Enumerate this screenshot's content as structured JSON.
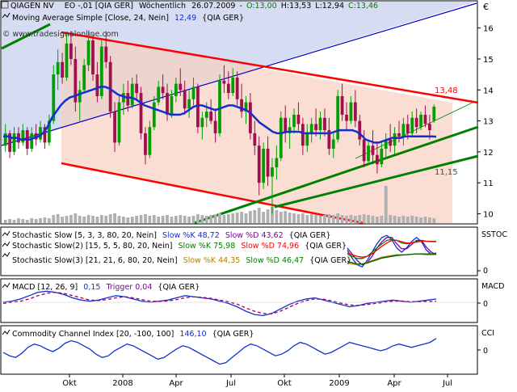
{
  "header": {
    "instrument": "QIAGEN NV",
    "exchange_code": "EO -,01 [QIA GER]",
    "period": "Wöchentlich",
    "date": "26.07.2009",
    "open": "O:13,00",
    "high": "H:13,53",
    "low": "L:12,94",
    "close": "C:13,46",
    "moving_average": "Moving Average Simple [Close, 24, Nein]",
    "moving_average_value": "12,49",
    "moving_average_symbol": "{QIA GER}",
    "watermark": "© www.tradesignalonline.com"
  },
  "colors": {
    "up_candle": "#00a000",
    "down_candle": "#a0104c",
    "ma_line": "#1030d0",
    "channel_red": "#ff0000",
    "trend_green": "#008000",
    "trend_blue": "#0000cc",
    "volume": "#b0b0b0",
    "purple_text": "#8000a0",
    "header_green": "#008000"
  },
  "chart_data": [
    {
      "type": "candlestick",
      "title": "QIAGEN NV",
      "currency": "€",
      "ylim": [
        9.7,
        16.8
      ],
      "yticks": [
        "16",
        "15",
        "14",
        "13",
        "12",
        "11",
        "10"
      ],
      "xlabels": [
        "Okt",
        "2008",
        "Apr",
        "Jul",
        "Okt",
        "2009",
        "Apr",
        "Jul"
      ],
      "annotations": [
        "13,48",
        "11,15"
      ],
      "candles": [
        [
          12.2,
          12.9,
          12.0,
          12.6
        ],
        [
          12.6,
          12.7,
          11.8,
          12.0
        ],
        [
          12.0,
          12.8,
          11.9,
          12.6
        ],
        [
          12.6,
          12.8,
          12.1,
          12.3
        ],
        [
          12.3,
          12.9,
          12.2,
          12.7
        ],
        [
          12.7,
          12.8,
          11.9,
          12.1
        ],
        [
          12.1,
          12.8,
          12.0,
          12.6
        ],
        [
          12.6,
          12.9,
          12.2,
          12.4
        ],
        [
          12.4,
          13.0,
          12.3,
          12.8
        ],
        [
          12.8,
          12.9,
          12.1,
          12.3
        ],
        [
          12.3,
          13.2,
          12.2,
          13.0
        ],
        [
          13.0,
          14.8,
          12.9,
          14.5
        ],
        [
          14.5,
          15.3,
          14.0,
          14.9
        ],
        [
          14.9,
          15.2,
          14.2,
          14.4
        ],
        [
          14.4,
          15.8,
          14.3,
          15.5
        ],
        [
          15.5,
          15.9,
          14.8,
          15.0
        ],
        [
          15.0,
          15.4,
          13.3,
          13.6
        ],
        [
          13.6,
          14.3,
          13.0,
          14.0
        ],
        [
          14.0,
          15.0,
          13.9,
          14.8
        ],
        [
          14.8,
          15.9,
          14.6,
          15.6
        ],
        [
          15.6,
          15.8,
          14.3,
          14.5
        ],
        [
          14.5,
          14.9,
          13.6,
          13.8
        ],
        [
          13.8,
          15.6,
          13.7,
          15.4
        ],
        [
          15.4,
          15.9,
          14.7,
          14.9
        ],
        [
          14.9,
          15.1,
          13.1,
          13.3
        ],
        [
          13.3,
          13.6,
          12.0,
          12.3
        ],
        [
          12.3,
          13.8,
          12.2,
          13.6
        ],
        [
          13.6,
          14.2,
          13.2,
          13.9
        ],
        [
          13.9,
          14.3,
          13.3,
          13.5
        ],
        [
          13.5,
          14.4,
          13.4,
          14.2
        ],
        [
          14.2,
          14.5,
          13.7,
          13.9
        ],
        [
          13.9,
          14.1,
          12.4,
          12.6
        ],
        [
          12.6,
          12.8,
          11.6,
          11.9
        ],
        [
          11.9,
          13.0,
          11.8,
          12.8
        ],
        [
          12.8,
          13.8,
          12.7,
          13.6
        ],
        [
          13.6,
          14.3,
          13.5,
          14.1
        ],
        [
          14.1,
          14.5,
          13.7,
          13.9
        ],
        [
          13.9,
          14.2,
          13.0,
          13.2
        ],
        [
          13.2,
          14.0,
          13.1,
          13.8
        ],
        [
          13.8,
          14.4,
          13.6,
          14.2
        ],
        [
          14.2,
          14.7,
          13.8,
          14.0
        ],
        [
          14.0,
          14.3,
          13.2,
          13.4
        ],
        [
          13.4,
          14.0,
          13.1,
          13.7
        ],
        [
          13.7,
          14.4,
          13.5,
          14.1
        ],
        [
          14.1,
          14.2,
          12.6,
          12.8
        ],
        [
          12.8,
          13.3,
          12.4,
          13.1
        ],
        [
          13.1,
          13.6,
          12.8,
          13.3
        ],
        [
          13.3,
          13.7,
          12.9,
          13.0
        ],
        [
          13.0,
          13.4,
          12.3,
          12.6
        ],
        [
          12.6,
          14.5,
          12.5,
          14.3
        ],
        [
          14.3,
          14.8,
          13.9,
          14.2
        ],
        [
          14.2,
          14.6,
          13.7,
          13.9
        ],
        [
          13.9,
          14.7,
          13.8,
          14.4
        ],
        [
          14.4,
          14.6,
          13.5,
          13.7
        ],
        [
          13.7,
          14.2,
          13.1,
          13.3
        ],
        [
          13.3,
          13.8,
          12.9,
          13.6
        ],
        [
          13.6,
          13.9,
          12.4,
          12.6
        ],
        [
          12.6,
          13.0,
          11.9,
          12.2
        ],
        [
          12.2,
          12.5,
          10.6,
          11.0
        ],
        [
          11.0,
          12.3,
          10.8,
          12.1
        ],
        [
          12.1,
          12.5,
          10.9,
          11.2
        ],
        [
          11.2,
          11.8,
          10.0,
          11.5
        ],
        [
          11.5,
          12.2,
          11.1,
          11.8
        ],
        [
          11.8,
          13.3,
          11.7,
          13.1
        ],
        [
          13.1,
          13.5,
          12.3,
          12.6
        ],
        [
          12.6,
          13.1,
          12.1,
          12.8
        ],
        [
          12.8,
          13.4,
          12.6,
          13.2
        ],
        [
          13.2,
          13.6,
          12.7,
          12.9
        ],
        [
          12.9,
          13.1,
          11.9,
          12.2
        ],
        [
          12.2,
          12.9,
          12.0,
          12.6
        ],
        [
          12.6,
          13.1,
          12.3,
          12.9
        ],
        [
          12.9,
          13.4,
          12.5,
          12.7
        ],
        [
          12.7,
          13.3,
          12.4,
          13.1
        ],
        [
          13.1,
          13.4,
          12.5,
          12.7
        ],
        [
          12.7,
          13.1,
          11.9,
          12.1
        ],
        [
          12.1,
          12.6,
          11.8,
          12.4
        ],
        [
          12.4,
          14.0,
          12.3,
          13.8
        ],
        [
          13.8,
          14.2,
          13.0,
          13.2
        ],
        [
          13.2,
          13.6,
          12.7,
          13.0
        ],
        [
          13.0,
          13.8,
          12.9,
          13.6
        ],
        [
          13.6,
          14.0,
          12.8,
          13.0
        ],
        [
          13.0,
          13.2,
          12.2,
          12.4
        ],
        [
          12.4,
          12.7,
          11.5,
          11.7
        ],
        [
          11.7,
          12.4,
          11.6,
          12.2
        ],
        [
          12.2,
          12.7,
          11.6,
          11.9
        ],
        [
          11.9,
          12.3,
          11.3,
          11.6
        ],
        [
          11.6,
          12.3,
          11.5,
          12.1
        ],
        [
          12.1,
          12.6,
          11.8,
          12.4
        ],
        [
          12.4,
          12.9,
          12.0,
          12.2
        ],
        [
          12.2,
          12.8,
          11.9,
          12.6
        ],
        [
          12.6,
          13.0,
          12.3,
          12.5
        ],
        [
          12.5,
          13.1,
          12.2,
          12.9
        ],
        [
          12.9,
          13.2,
          12.4,
          12.6
        ],
        [
          12.6,
          13.3,
          12.5,
          13.1
        ],
        [
          13.1,
          13.4,
          12.6,
          12.8
        ],
        [
          12.8,
          13.3,
          12.7,
          13.2
        ],
        [
          13.2,
          13.5,
          12.8,
          12.9
        ],
        [
          12.9,
          13.2,
          12.4,
          12.7
        ],
        [
          13.0,
          13.53,
          12.94,
          13.46
        ]
      ],
      "moving_average": [
        12.5,
        12.5,
        12.45,
        12.45,
        12.4,
        12.4,
        12.4,
        12.45,
        12.5,
        12.6,
        12.8,
        13.1,
        13.3,
        13.5,
        13.65,
        13.75,
        13.8,
        13.85,
        13.9,
        13.95,
        14.0,
        14.05,
        14.1,
        14.1,
        14.05,
        13.95,
        13.85,
        13.8,
        13.75,
        13.75,
        13.7,
        13.6,
        13.5,
        13.45,
        13.4,
        13.35,
        13.3,
        13.25,
        13.2,
        13.2,
        13.2,
        13.25,
        13.35,
        13.45,
        13.5,
        13.5,
        13.45,
        13.4,
        13.35,
        13.4,
        13.45,
        13.5,
        13.5,
        13.45,
        13.4,
        13.35,
        13.25,
        13.1,
        12.95,
        12.85,
        12.75,
        12.65,
        12.6,
        12.6,
        12.65,
        12.65,
        12.65,
        12.65,
        12.6,
        12.6,
        12.6,
        12.6,
        12.6,
        12.6,
        12.6,
        12.65,
        12.7,
        12.7,
        12.7,
        12.7,
        12.65,
        12.55,
        12.4,
        12.35,
        12.3,
        12.3,
        12.35,
        12.4,
        12.45,
        12.45,
        12.45,
        12.5,
        12.5,
        12.5,
        12.5,
        12.5,
        12.5,
        12.5,
        12.49
      ],
      "volume": [
        0.2,
        0.25,
        0.2,
        0.3,
        0.25,
        0.2,
        0.3,
        0.25,
        0.3,
        0.35,
        0.3,
        0.5,
        0.55,
        0.4,
        0.45,
        0.5,
        0.6,
        0.45,
        0.4,
        0.5,
        0.45,
        0.4,
        0.5,
        0.45,
        0.55,
        0.6,
        0.45,
        0.4,
        0.35,
        0.4,
        0.45,
        0.5,
        0.55,
        0.45,
        0.5,
        0.4,
        0.45,
        0.5,
        0.4,
        0.45,
        0.5,
        0.45,
        0.4,
        0.45,
        0.55,
        0.5,
        0.45,
        0.5,
        0.55,
        0.6,
        0.5,
        0.55,
        0.6,
        0.65,
        0.7,
        0.6,
        0.75,
        0.8,
        0.95,
        0.7,
        0.85,
        1.0,
        0.8,
        0.7,
        0.75,
        0.65,
        0.6,
        0.55,
        0.6,
        0.5,
        0.55,
        0.5,
        0.45,
        0.5,
        0.55,
        0.5,
        0.6,
        0.5,
        0.45,
        0.5,
        0.45,
        0.5,
        0.55,
        0.5,
        0.45,
        0.4,
        0.45,
        2.3,
        0.5,
        0.45,
        0.4,
        0.45,
        0.4,
        0.45,
        0.4,
        0.35,
        0.4,
        0.35,
        0.3
      ]
    },
    {
      "type": "line",
      "title": "Stochastic Slow",
      "pane_label": "SSTOC",
      "ytick": "0",
      "legend": [
        {
          "text": "Stochastic Slow [5, 3, 3, 80, 20, Nein]",
          "k": "Slow %K 48,72",
          "d": "Slow %D 43,62",
          "sym": "{QIA GER}"
        },
        {
          "text": "Stochastic Slow(2) [15, 5, 5, 80, 20, Nein]",
          "k": "Slow %K 75,98",
          "d": "Slow %D 74,96",
          "sym": "{QIA GER}"
        },
        {
          "text": "Stochastic Slow(3) [21, 21, 6, 80, 20, Nein]",
          "k": "Slow %K 44,35",
          "d": "Slow %D 46,47",
          "sym": "{QIA GER}"
        }
      ],
      "series": [
        {
          "name": "Slow %K",
          "values": [
            55,
            35,
            20,
            15,
            30,
            50,
            70,
            85,
            90,
            80,
            60,
            50,
            60,
            75,
            85,
            75,
            55,
            45,
            48
          ]
        },
        {
          "name": "Slow %D",
          "values": [
            60,
            45,
            30,
            20,
            25,
            40,
            60,
            75,
            85,
            85,
            70,
            58,
            58,
            68,
            78,
            78,
            62,
            50,
            44
          ]
        },
        {
          "name": "Slow %K(2)",
          "values": [
            45,
            40,
            35,
            35,
            40,
            50,
            60,
            70,
            78,
            80,
            78,
            72,
            70,
            72,
            76,
            78,
            76,
            76,
            76
          ]
        },
        {
          "name": "Slow %D(2)",
          "values": [
            48,
            44,
            40,
            38,
            40,
            46,
            55,
            64,
            72,
            78,
            78,
            75,
            72,
            72,
            74,
            76,
            76,
            75,
            75
          ]
        },
        {
          "name": "Slow %K(3)",
          "values": [
            25,
            22,
            20,
            22,
            26,
            30,
            34,
            38,
            40,
            42,
            44,
            44,
            44,
            45,
            46,
            45,
            44,
            44,
            44
          ]
        },
        {
          "name": "Slow %D(3)",
          "values": [
            28,
            25,
            22,
            22,
            24,
            28,
            32,
            36,
            38,
            40,
            42,
            43,
            44,
            45,
            46,
            46,
            46,
            46,
            46
          ]
        }
      ]
    },
    {
      "type": "line",
      "title": "MACD",
      "pane_label": "MACD",
      "ytick": "0",
      "legend": {
        "text": "MACD [12, 26, 9]",
        "value": "0,15",
        "trigger": "Trigger 0,04",
        "sym": "{QIA GER}"
      },
      "series": [
        {
          "name": "MACD",
          "values": [
            0.0,
            0.05,
            0.15,
            0.3,
            0.45,
            0.5,
            0.45,
            0.35,
            0.2,
            0.1,
            0.05,
            0.1,
            0.2,
            0.3,
            0.25,
            0.15,
            0.05,
            0.0,
            0.05,
            0.1,
            0.2,
            0.3,
            0.25,
            0.2,
            0.15,
            0.05,
            -0.05,
            -0.2,
            -0.4,
            -0.55,
            -0.6,
            -0.5,
            -0.3,
            -0.1,
            0.05,
            0.15,
            0.2,
            0.1,
            0.0,
            -0.1,
            -0.2,
            -0.15,
            -0.05,
            0.0,
            0.05,
            0.1,
            0.05,
            0.0,
            0.05,
            0.1,
            0.15
          ]
        },
        {
          "name": "Trigger",
          "values": [
            -0.05,
            0.0,
            0.05,
            0.15,
            0.3,
            0.4,
            0.45,
            0.4,
            0.3,
            0.2,
            0.1,
            0.08,
            0.12,
            0.2,
            0.25,
            0.2,
            0.12,
            0.05,
            0.04,
            0.06,
            0.12,
            0.2,
            0.25,
            0.22,
            0.18,
            0.1,
            0.02,
            -0.08,
            -0.25,
            -0.4,
            -0.5,
            -0.52,
            -0.4,
            -0.22,
            -0.05,
            0.08,
            0.15,
            0.14,
            0.06,
            -0.04,
            -0.12,
            -0.14,
            -0.1,
            -0.05,
            0.0,
            0.05,
            0.06,
            0.03,
            0.03,
            0.04,
            0.04
          ]
        }
      ]
    },
    {
      "type": "line",
      "title": "Commodity Channel Index",
      "pane_label": "CCI",
      "ytick": "0",
      "legend": {
        "text": "Commodity Channel Index [20, -100, 100]",
        "value": "146,10",
        "sym": "{QIA GER}"
      },
      "series": [
        {
          "name": "CCI",
          "values": [
            -20,
            -60,
            -80,
            -30,
            40,
            80,
            60,
            20,
            -10,
            30,
            90,
            120,
            100,
            60,
            20,
            -40,
            -80,
            -60,
            0,
            40,
            80,
            60,
            20,
            -20,
            -60,
            -100,
            -80,
            -30,
            20,
            60,
            40,
            0,
            -40,
            -80,
            -120,
            -160,
            -140,
            -80,
            -20,
            40,
            80,
            60,
            20,
            -20,
            -60,
            -40,
            0,
            60,
            100,
            80,
            40,
            0,
            -40,
            -20,
            20,
            60,
            100,
            80,
            60,
            40,
            20,
            0,
            20,
            60,
            80,
            60,
            40,
            60,
            80,
            100,
            146
          ]
        }
      ]
    }
  ]
}
